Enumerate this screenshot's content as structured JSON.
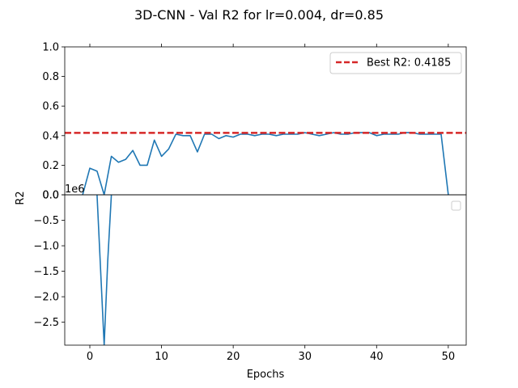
{
  "chart_data": {
    "type": "line",
    "title": "3D-CNN - Val R2 for lr=0.004, dr=0.85",
    "xlabel": "Epochs",
    "ylabel": "R2",
    "xlim": [
      -3.5,
      52.5
    ],
    "xticks": [
      "0",
      "10",
      "20",
      "30",
      "40",
      "50"
    ],
    "xtick_values": [
      0,
      10,
      20,
      30,
      40,
      50
    ],
    "upper_panel": {
      "ylim": [
        0.0,
        1.0
      ],
      "yticks": [
        "0.0",
        "0.2",
        "0.4",
        "0.6",
        "0.8",
        "1.0"
      ],
      "ytick_values": [
        0.0,
        0.2,
        0.4,
        0.6,
        0.8,
        1.0
      ],
      "series": {
        "color": "#1f77b4",
        "x": [
          -1,
          0,
          1,
          2,
          3,
          4,
          5,
          6,
          7,
          8,
          9,
          10,
          11,
          12,
          13,
          14,
          15,
          16,
          17,
          18,
          19,
          20,
          21,
          22,
          23,
          24,
          25,
          26,
          27,
          28,
          29,
          30,
          31,
          32,
          33,
          34,
          35,
          36,
          37,
          38,
          39,
          40,
          41,
          42,
          43,
          44,
          45,
          46,
          47,
          48,
          49,
          50
        ],
        "y": [
          0.0,
          0.18,
          0.16,
          0.0,
          0.26,
          0.22,
          0.24,
          0.3,
          0.2,
          0.2,
          0.37,
          0.26,
          0.31,
          0.41,
          0.4,
          0.4,
          0.29,
          0.41,
          0.41,
          0.38,
          0.4,
          0.39,
          0.41,
          0.41,
          0.4,
          0.41,
          0.41,
          0.4,
          0.41,
          0.41,
          0.41,
          0.42,
          0.41,
          0.4,
          0.41,
          0.42,
          0.41,
          0.41,
          0.42,
          0.42,
          0.42,
          0.4,
          0.41,
          0.41,
          0.41,
          0.42,
          0.42,
          0.41,
          0.41,
          0.41,
          0.41,
          0.0
        ]
      },
      "best_line": {
        "value": 0.4185,
        "color": "#d62728",
        "legend_label": "Best R2: 0.4185"
      },
      "legend_placement": "upper-right"
    },
    "lower_panel": {
      "offset_label": "1e6",
      "ylim": [
        -2.95,
        0.0
      ],
      "yticks": [
        "0.0",
        "−0.5",
        "−1.0",
        "−1.5",
        "−2.0",
        "−2.5"
      ],
      "ytick_values": [
        0.0,
        -0.5,
        -1.0,
        -1.5,
        -2.0,
        -2.5
      ],
      "series": {
        "color": "#1f77b4",
        "x": [
          1,
          2,
          2.5,
          3
        ],
        "y": [
          0.0,
          -2.95,
          -1.3,
          0.0
        ]
      },
      "legend_placement": "center-right"
    }
  }
}
